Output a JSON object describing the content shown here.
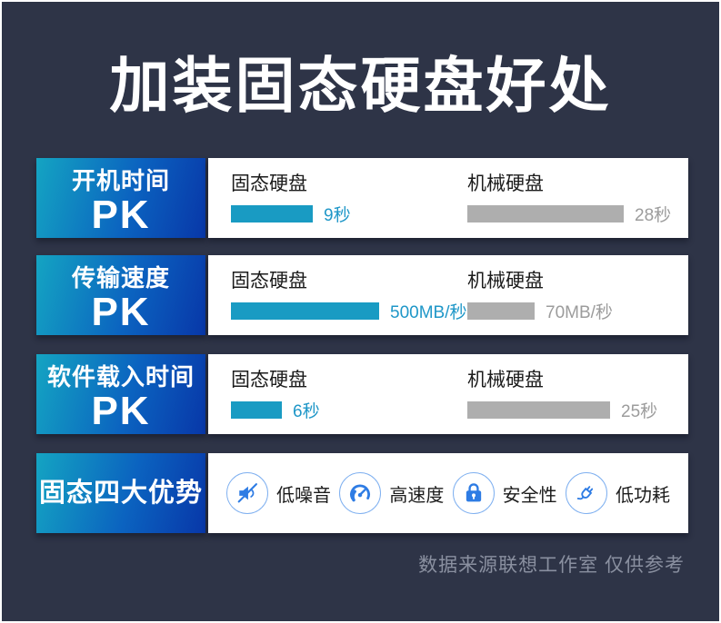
{
  "title": "加装固态硬盘好处",
  "footer": "数据来源联想工作室  仅供参考",
  "colors": {
    "background": "#2e3447",
    "panel_gradient_start": "#14a4c2",
    "panel_gradient_end": "#0837a8",
    "ssd_bar": "#199bc3",
    "ssd_value_text": "#1f97c8",
    "hdd_bar": "#aeaeae",
    "hdd_value_text": "#9c9c9c",
    "icon_blue": "#2e7ce4",
    "text_dark": "#1c1c1c",
    "footer_text": "#8a90a0"
  },
  "rows": [
    {
      "metric": "开机时间",
      "pk": "PK",
      "ssd_label": "固态硬盘",
      "ssd_value": "9秒",
      "ssd_bar_w": 90,
      "hdd_label": "机械硬盘",
      "hdd_value": "28秒",
      "hdd_bar_w": 172
    },
    {
      "metric": "传输速度",
      "pk": "PK",
      "ssd_label": "固态硬盘",
      "ssd_value": "500MB/秒",
      "ssd_bar_w": 163,
      "hdd_label": "机械硬盘",
      "hdd_value": "70MB/秒",
      "hdd_bar_w": 74
    },
    {
      "metric": "软件载入时间",
      "pk": "PK",
      "ssd_label": "固态硬盘",
      "ssd_value": "6秒",
      "ssd_bar_w": 56,
      "hdd_label": "机械硬盘",
      "hdd_value": "25秒",
      "hdd_bar_w": 157
    }
  ],
  "advantages": {
    "heading": "固态四大优势",
    "items": [
      {
        "icon": "muted-speaker-icon",
        "label": "低噪音"
      },
      {
        "icon": "speedometer-icon",
        "label": "高速度"
      },
      {
        "icon": "lock-icon",
        "label": "安全性"
      },
      {
        "icon": "plug-icon",
        "label": "低功耗"
      }
    ]
  },
  "chart_data": [
    {
      "type": "bar",
      "title": "开机时间 PK",
      "categories": [
        "固态硬盘",
        "机械硬盘"
      ],
      "values": [
        9,
        28
      ],
      "unit": "秒",
      "value_labels": [
        "9秒",
        "28秒"
      ]
    },
    {
      "type": "bar",
      "title": "传输速度 PK",
      "categories": [
        "固态硬盘",
        "机械硬盘"
      ],
      "values": [
        500,
        70
      ],
      "unit": "MB/秒",
      "value_labels": [
        "500MB/秒",
        "70MB/秒"
      ]
    },
    {
      "type": "bar",
      "title": "软件载入时间 PK",
      "categories": [
        "固态硬盘",
        "机械硬盘"
      ],
      "values": [
        6,
        25
      ],
      "unit": "秒",
      "value_labels": [
        "6秒",
        "25秒"
      ]
    }
  ]
}
